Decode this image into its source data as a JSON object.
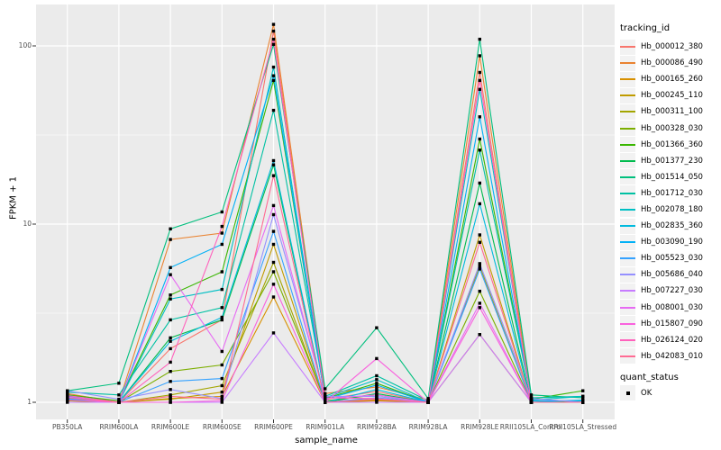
{
  "chart_data": {
    "type": "line",
    "title": "",
    "xlabel": "sample_name",
    "ylabel": "FPKM + 1",
    "y_scale": "log10",
    "y_ticks": [
      1,
      10,
      100
    ],
    "y_minor_ticks": [
      3.1623,
      31.623
    ],
    "ylim": [
      0.8,
      169
    ],
    "grid": true,
    "legend_position": "right",
    "point_shape": "filled-square",
    "point_color": "#000000",
    "categories": [
      "PB350LA",
      "RRIM600LA",
      "RRIM600LE",
      "RRIM600SE",
      "RRIM600PE",
      "RRIM901LA",
      "RRIM928BA",
      "RRIM928LA",
      "RRIM928LE",
      "RRII105LA_Control",
      "RRII105LA_Stressed"
    ],
    "series": [
      {
        "name": "Hb_000012_380",
        "color": "#F8766D",
        "values": [
          1.05,
          1.0,
          2.0,
          2.9,
          121,
          1.04,
          1.15,
          1.0,
          71,
          1.02,
          1.0
        ]
      },
      {
        "name": "Hb_000086_490",
        "color": "#EA8331",
        "values": [
          1.12,
          1.0,
          8.2,
          8.9,
          132,
          1.12,
          1.22,
          1.03,
          88,
          1.05,
          1.0
        ]
      },
      {
        "name": "Hb_000165_260",
        "color": "#D89000",
        "values": [
          1.02,
          1.0,
          1.05,
          1.08,
          3.9,
          1.0,
          1.02,
          1.0,
          2.4,
          1.0,
          1.0
        ]
      },
      {
        "name": "Hb_000245_110",
        "color": "#C09B00",
        "values": [
          1.03,
          1.0,
          1.04,
          1.14,
          7.7,
          1.0,
          1.03,
          1.0,
          8.7,
          1.0,
          1.0
        ]
      },
      {
        "name": "Hb_000311_100",
        "color": "#A3A500",
        "values": [
          1.02,
          1.0,
          1.1,
          1.24,
          6.1,
          1.0,
          1.04,
          1.0,
          5.8,
          1.0,
          1.0
        ]
      },
      {
        "name": "Hb_000328_030",
        "color": "#7CAE00",
        "values": [
          1.04,
          1.0,
          1.49,
          1.62,
          5.4,
          1.02,
          1.1,
          1.0,
          4.2,
          1.0,
          1.0
        ]
      },
      {
        "name": "Hb_001366_360",
        "color": "#39B600",
        "values": [
          1.1,
          1.02,
          4.0,
          5.4,
          64,
          1.05,
          1.28,
          1.0,
          30,
          1.04,
          1.16
        ]
      },
      {
        "name": "Hb_001377_230",
        "color": "#00BB4E",
        "values": [
          1.06,
          1.0,
          2.3,
          2.9,
          21.5,
          1.0,
          1.12,
          1.0,
          17,
          1.0,
          1.02
        ]
      },
      {
        "name": "Hb_001514_050",
        "color": "#00BF7D",
        "values": [
          1.16,
          1.28,
          9.4,
          11.7,
          102,
          1.19,
          2.62,
          1.05,
          109,
          1.1,
          1.06
        ]
      },
      {
        "name": "Hb_001712_030",
        "color": "#00C1A3",
        "values": [
          1.14,
          1.1,
          2.9,
          3.4,
          43.5,
          1.08,
          1.41,
          1.02,
          26,
          1.06,
          1.08
        ]
      },
      {
        "name": "Hb_002078_180",
        "color": "#00BFC4",
        "values": [
          1.09,
          1.0,
          3.8,
          4.3,
          76,
          1.06,
          1.34,
          1.0,
          57,
          1.03,
          1.08
        ]
      },
      {
        "name": "Hb_002835_360",
        "color": "#00BADE",
        "values": [
          1.05,
          1.0,
          2.2,
          3.0,
          22.7,
          1.0,
          1.18,
          1.0,
          13,
          1.0,
          1.03
        ]
      },
      {
        "name": "Hb_003090_190",
        "color": "#00B0F6",
        "values": [
          1.08,
          1.0,
          5.7,
          7.7,
          68,
          1.04,
          1.25,
          1.0,
          40,
          1.02,
          1.02
        ]
      },
      {
        "name": "Hb_005523_030",
        "color": "#35A2FF",
        "values": [
          1.04,
          1.0,
          1.31,
          1.36,
          9.1,
          1.0,
          1.06,
          1.0,
          5.6,
          1.0,
          1.0
        ]
      },
      {
        "name": "Hb_005686_040",
        "color": "#9590FF",
        "values": [
          1.16,
          1.04,
          1.18,
          1.05,
          11.3,
          1.08,
          1.08,
          1.0,
          6.0,
          1.05,
          1.0
        ]
      },
      {
        "name": "Hb_007227_030",
        "color": "#C77CFF",
        "values": [
          1.0,
          1.0,
          1.0,
          1.0,
          2.45,
          1.0,
          1.0,
          1.0,
          2.4,
          1.0,
          1.0
        ]
      },
      {
        "name": "Hb_008001_030",
        "color": "#E76BF3",
        "values": [
          1.07,
          1.0,
          5.2,
          1.93,
          12.7,
          1.05,
          1.1,
          1.0,
          3.6,
          1.0,
          1.0
        ]
      },
      {
        "name": "Hb_015807_090",
        "color": "#F962DE",
        "values": [
          1.03,
          1.0,
          1.0,
          1.02,
          4.6,
          1.0,
          1.76,
          1.0,
          3.4,
          1.0,
          1.0
        ]
      },
      {
        "name": "Hb_026124_020",
        "color": "#FF62BC",
        "values": [
          1.09,
          1.0,
          1.68,
          9.7,
          109,
          1.06,
          1.05,
          1.0,
          64,
          1.0,
          1.0
        ]
      },
      {
        "name": "Hb_042083_010",
        "color": "#FF6B94",
        "values": [
          1.06,
          1.0,
          1.08,
          1.04,
          18.7,
          1.0,
          1.04,
          1.0,
          7.9,
          1.0,
          1.0
        ]
      }
    ]
  },
  "legend": {
    "color_title": "tracking_id",
    "shape_title": "quant_status",
    "shape_items": [
      {
        "label": "OK",
        "symbol": "black-square"
      }
    ]
  },
  "colors": {
    "panel_bg": "#EBEBEB",
    "grid": "#FFFFFF",
    "axis_text": "#4D4D4D",
    "tick": "#333333",
    "text": "#000000",
    "key_bg": "#F2F2F2"
  }
}
